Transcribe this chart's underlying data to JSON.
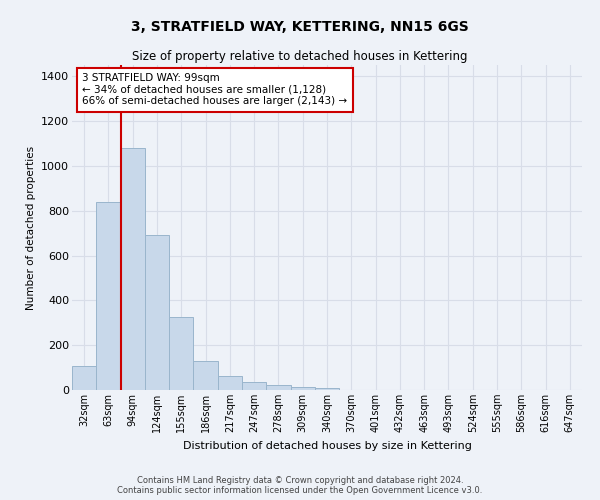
{
  "title": "3, STRATFIELD WAY, KETTERING, NN15 6GS",
  "subtitle": "Size of property relative to detached houses in Kettering",
  "xlabel": "Distribution of detached houses by size in Kettering",
  "ylabel": "Number of detached properties",
  "footer_line1": "Contains HM Land Registry data © Crown copyright and database right 2024.",
  "footer_line2": "Contains public sector information licensed under the Open Government Licence v3.0.",
  "bar_labels": [
    "32sqm",
    "63sqm",
    "94sqm",
    "124sqm",
    "155sqm",
    "186sqm",
    "217sqm",
    "247sqm",
    "278sqm",
    "309sqm",
    "340sqm",
    "370sqm",
    "401sqm",
    "432sqm",
    "463sqm",
    "493sqm",
    "524sqm",
    "555sqm",
    "586sqm",
    "616sqm",
    "647sqm"
  ],
  "bar_values": [
    108,
    840,
    1080,
    690,
    325,
    128,
    62,
    37,
    22,
    14,
    8,
    0,
    0,
    0,
    0,
    0,
    0,
    0,
    0,
    0,
    0
  ],
  "bar_color": "#c8d8ea",
  "bar_edge_color": "#9ab5cc",
  "background_color": "#eef2f8",
  "grid_color": "#d8dde8",
  "ylim": [
    0,
    1450
  ],
  "yticks": [
    0,
    200,
    400,
    600,
    800,
    1000,
    1200,
    1400
  ],
  "red_line_index": 2,
  "annotation_text": "3 STRATFIELD WAY: 99sqm\n← 34% of detached houses are smaller (1,128)\n66% of semi-detached houses are larger (2,143) →",
  "annotation_box_color": "#ffffff",
  "annotation_border_color": "#cc0000",
  "red_line_color": "#cc0000",
  "title_fontsize": 10,
  "subtitle_fontsize": 8.5
}
